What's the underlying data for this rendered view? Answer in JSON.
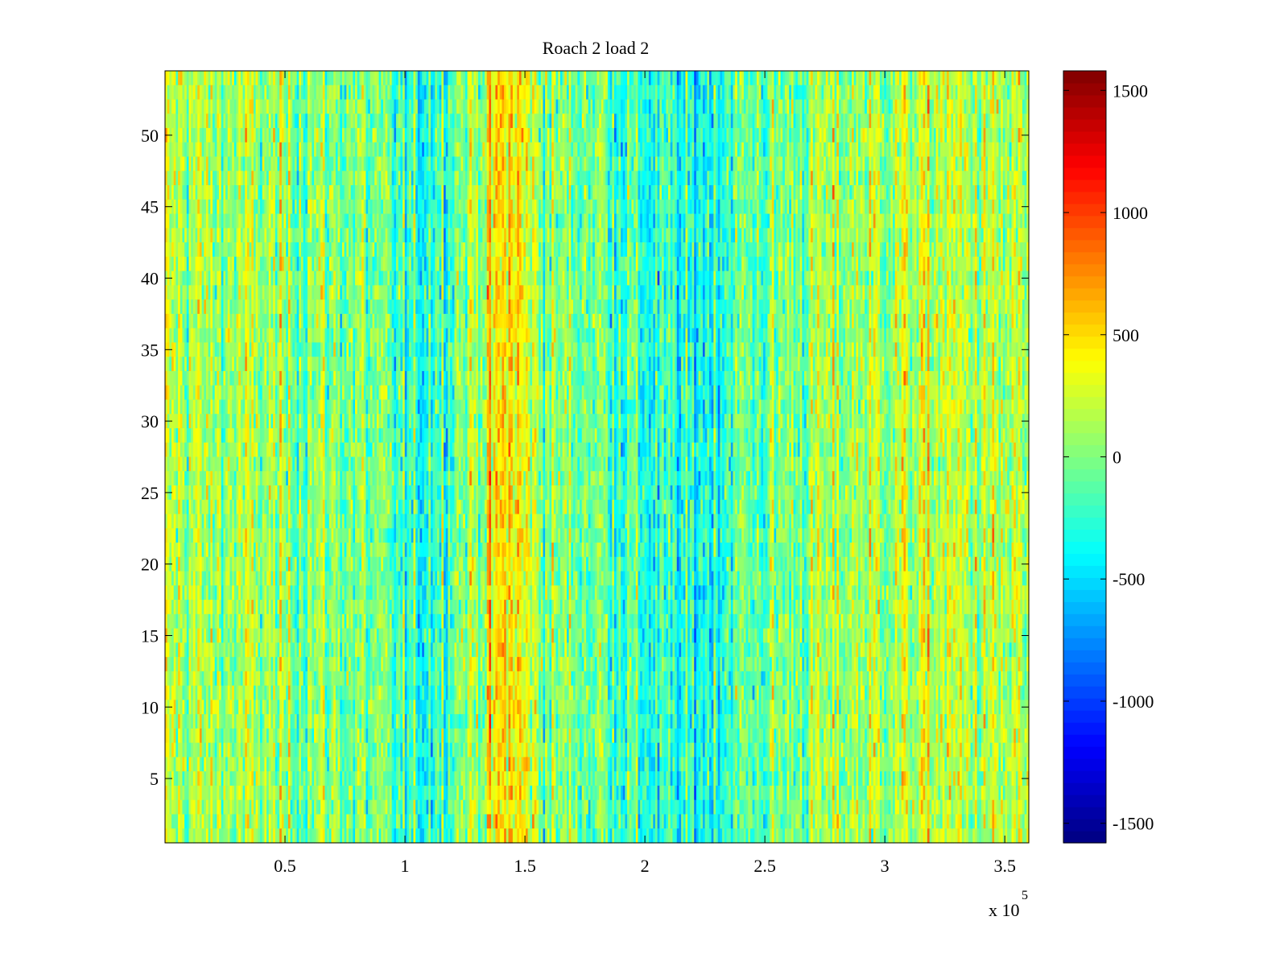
{
  "chart_data": {
    "type": "heatmap",
    "title": "Roach 2 load 2",
    "xlabel": "",
    "ylabel": "",
    "x_range": [
      0,
      360000
    ],
    "y_range": [
      0.5,
      54.5
    ],
    "n_rows": 54,
    "x_ticks": [
      {
        "value": 50000,
        "label": "0.5"
      },
      {
        "value": 100000,
        "label": "1"
      },
      {
        "value": 150000,
        "label": "1.5"
      },
      {
        "value": 200000,
        "label": "2"
      },
      {
        "value": 250000,
        "label": "2.5"
      },
      {
        "value": 300000,
        "label": "3"
      },
      {
        "value": 350000,
        "label": "3.5"
      }
    ],
    "x_exponent_label": "x 10",
    "x_exponent_power": "5",
    "y_ticks": [
      {
        "value": 5,
        "label": "5"
      },
      {
        "value": 10,
        "label": "10"
      },
      {
        "value": 15,
        "label": "15"
      },
      {
        "value": 20,
        "label": "20"
      },
      {
        "value": 25,
        "label": "25"
      },
      {
        "value": 30,
        "label": "30"
      },
      {
        "value": 35,
        "label": "35"
      },
      {
        "value": 40,
        "label": "40"
      },
      {
        "value": 45,
        "label": "45"
      },
      {
        "value": 50,
        "label": "50"
      }
    ],
    "colorbar": {
      "colormap": "jet",
      "range": [
        -1580,
        1580
      ],
      "ticks": [
        {
          "value": 1500,
          "label": "1500"
        },
        {
          "value": 1000,
          "label": "1000"
        },
        {
          "value": 500,
          "label": "500"
        },
        {
          "value": 0,
          "label": "0"
        },
        {
          "value": -500,
          "label": "-500"
        },
        {
          "value": -1000,
          "label": "-1000"
        },
        {
          "value": -1500,
          "label": "-1500"
        }
      ]
    },
    "column_profile": {
      "x": [
        0,
        20000,
        40000,
        60000,
        80000,
        95000,
        105000,
        115000,
        130000,
        140000,
        145000,
        150000,
        160000,
        180000,
        195000,
        205000,
        215000,
        225000,
        240000,
        260000,
        280000,
        300000,
        320000,
        340000,
        360000
      ],
      "mean": [
        150,
        100,
        80,
        50,
        0,
        -200,
        -300,
        -100,
        150,
        400,
        500,
        300,
        0,
        0,
        -200,
        -300,
        -350,
        -300,
        -100,
        0,
        100,
        150,
        200,
        150,
        100
      ]
    },
    "grid": false,
    "legend": "none"
  }
}
